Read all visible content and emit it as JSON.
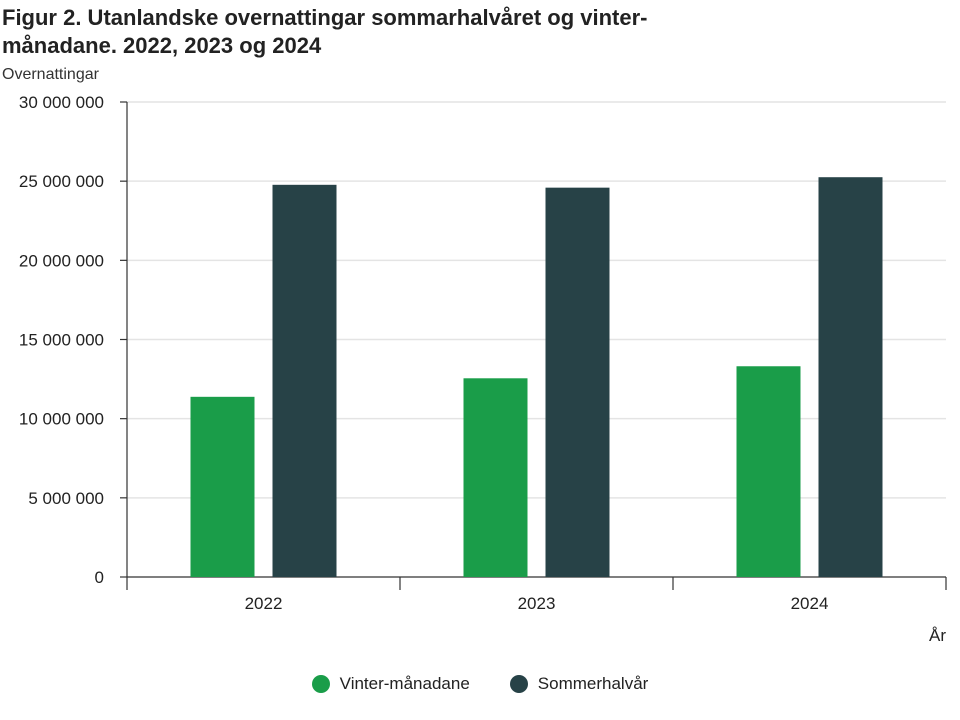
{
  "chart_data": {
    "type": "bar",
    "title": "Figur 2. Utanlandske overnattingar sommarhalvåret og vinter-månadane. 2022, 2023 og 2024",
    "ylabel": "Overnattingar",
    "xlabel": "År",
    "categories": [
      "2022",
      "2023",
      "2024"
    ],
    "series": [
      {
        "name": "Vinter-månadane",
        "color": "#1a9d49",
        "values": [
          11380000,
          12550000,
          13310000
        ]
      },
      {
        "name": "Sommerhalvår",
        "color": "#274247",
        "values": [
          24770000,
          24590000,
          25250000
        ]
      }
    ],
    "ylim": [
      0,
      30000000
    ],
    "yticks": [
      0,
      5000000,
      10000000,
      15000000,
      20000000,
      25000000,
      30000000
    ],
    "ytick_labels": [
      "0",
      "5 000 000",
      "10 000 000",
      "15 000 000",
      "20 000 000",
      "25 000 000",
      "30 000 000"
    ],
    "grid": true,
    "legend_position": "bottom"
  }
}
